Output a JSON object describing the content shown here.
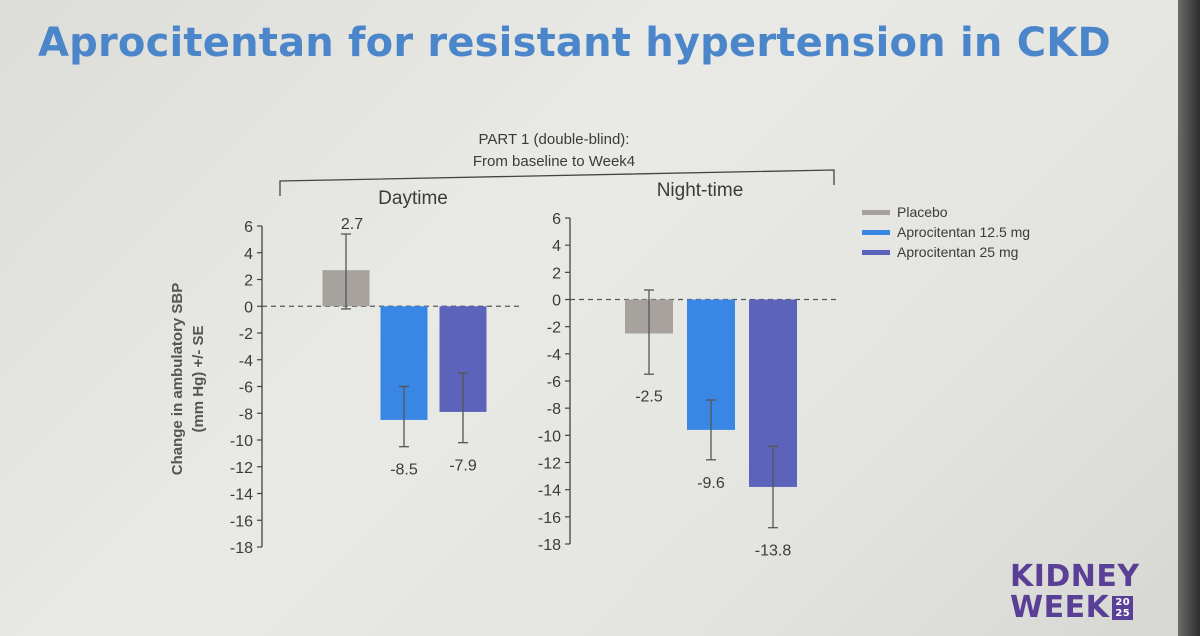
{
  "title": "Aprocitentan for resistant hypertension in CKD",
  "chart_data": {
    "type": "bar",
    "header_line1": "PART 1 (double-blind):",
    "header_line2": "From baseline to Week4",
    "ylabel_line1": "Change in ambulatory SBP",
    "ylabel_line2": "(mm Hg) +/- SE",
    "ylim": [
      -18,
      6
    ],
    "yticks": [
      "6",
      "4",
      "2",
      "0",
      "-2",
      "-4",
      "-6",
      "-8",
      "-10",
      "-12",
      "-14",
      "-16",
      "-18"
    ],
    "series": [
      {
        "name": "Placebo",
        "color": "#a7a29d"
      },
      {
        "name": "Aprocitentan 12.5 mg",
        "color": "#3a86e4"
      },
      {
        "name": "Aprocitentan 25 mg",
        "color": "#5b63bb"
      }
    ],
    "panels": [
      {
        "title": "Daytime",
        "bars": [
          {
            "series": 0,
            "value": 2.7,
            "err_low": -0.2,
            "err_high": 5.4,
            "label": "2.7"
          },
          {
            "series": 1,
            "value": -8.5,
            "err_low": -10.5,
            "err_high": -6.0,
            "label": "-8.5"
          },
          {
            "series": 2,
            "value": -7.9,
            "err_low": -10.2,
            "err_high": -5.0,
            "label": "-7.9"
          }
        ]
      },
      {
        "title": "Night-time",
        "bars": [
          {
            "series": 0,
            "value": -2.5,
            "err_low": -5.5,
            "err_high": 0.7,
            "label": "-2.5"
          },
          {
            "series": 1,
            "value": -9.6,
            "err_low": -11.8,
            "err_high": -7.4,
            "label": "-9.6"
          },
          {
            "series": 2,
            "value": -13.8,
            "err_low": -16.8,
            "err_high": -10.8,
            "label": "-13.8"
          }
        ]
      }
    ]
  },
  "logo": {
    "line1": "KIDNEY",
    "line2": "WEEK",
    "year_top": "20",
    "year_bottom": "25"
  }
}
